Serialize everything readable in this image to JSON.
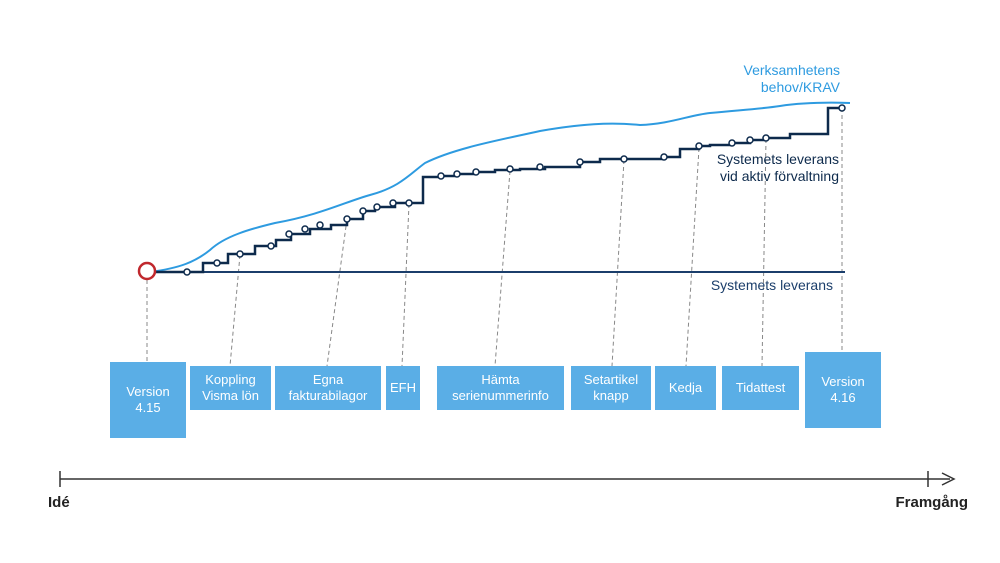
{
  "labels": {
    "demand": "Verksamhetens\nbehov/KRAV",
    "active_delivery": "Systemets leverans\nvid aktiv förvaltning",
    "delivery": "Systemets leverans"
  },
  "axis": {
    "start": "Idé",
    "end": "Framgång"
  },
  "boxes": [
    {
      "id": "v415",
      "label": "Version\n4.15"
    },
    {
      "id": "koppling",
      "label": "Koppling\nVisma lön"
    },
    {
      "id": "egna",
      "label": "Egna\nfakturabilagor"
    },
    {
      "id": "efh",
      "label": "EFH"
    },
    {
      "id": "hamta",
      "label": "Hämta\nserienummerinfo"
    },
    {
      "id": "setartikel",
      "label": "Setartikel\nknapp"
    },
    {
      "id": "kedja",
      "label": "Kedja"
    },
    {
      "id": "tidattest",
      "label": "Tidattest"
    },
    {
      "id": "v416",
      "label": "Version\n4.16"
    }
  ],
  "colors": {
    "box": "#5AAEE6",
    "demand_line": "#2E9BE0",
    "active_line": "#0D2A4C",
    "delivery_line": "#1B3E6B",
    "start_marker": "#C0282D",
    "axis": "#333333"
  }
}
